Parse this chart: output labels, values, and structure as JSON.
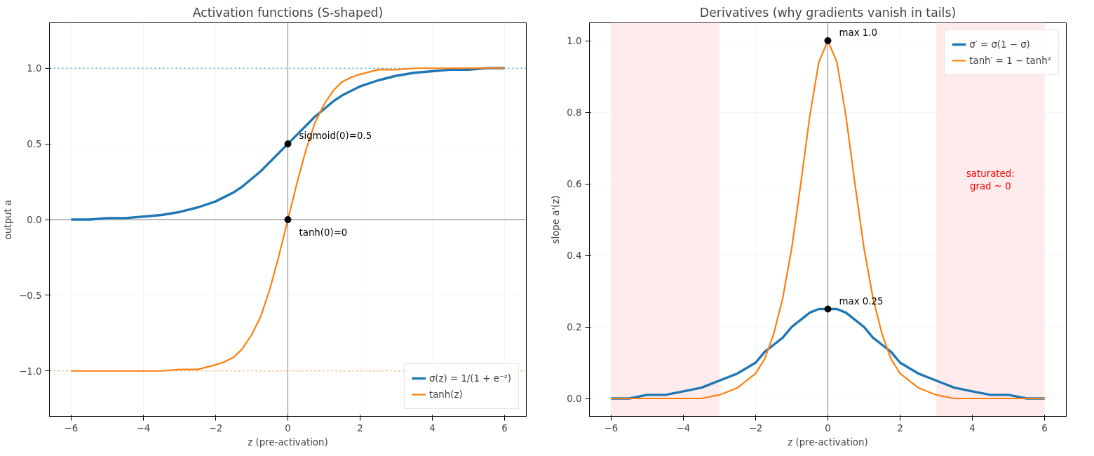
{
  "chart_data": [
    {
      "type": "line",
      "title": "Activation functions (S-shaped)",
      "xlabel": "z (pre-activation)",
      "ylabel": "output a",
      "x": [
        -6,
        -5.5,
        -5,
        -4.5,
        -4,
        -3.5,
        -3,
        -2.5,
        -2,
        -1.75,
        -1.5,
        -1.25,
        -1,
        -0.75,
        -0.5,
        -0.25,
        0,
        0.25,
        0.5,
        0.75,
        1,
        1.25,
        1.5,
        1.75,
        2,
        2.5,
        3,
        3.5,
        4,
        4.5,
        5,
        5.5,
        6
      ],
      "series": [
        {
          "name": "σ(z) = 1/(1 + e⁻ᶻ)",
          "color": "#1f77b4",
          "values": [
            0.0,
            0.0,
            0.01,
            0.01,
            0.02,
            0.03,
            0.05,
            0.08,
            0.12,
            0.15,
            0.18,
            0.22,
            0.27,
            0.32,
            0.38,
            0.44,
            0.5,
            0.56,
            0.62,
            0.68,
            0.73,
            0.78,
            0.82,
            0.85,
            0.88,
            0.92,
            0.95,
            0.97,
            0.98,
            0.99,
            0.99,
            1.0,
            1.0
          ]
        },
        {
          "name": "tanh(z)",
          "color": "#ff7f0e",
          "values": [
            -1.0,
            -1.0,
            -1.0,
            -1.0,
            -1.0,
            -1.0,
            -0.99,
            -0.99,
            -0.96,
            -0.94,
            -0.91,
            -0.85,
            -0.76,
            -0.64,
            -0.46,
            -0.24,
            0,
            0.24,
            0.46,
            0.64,
            0.76,
            0.85,
            0.91,
            0.94,
            0.96,
            0.99,
            0.99,
            1.0,
            1.0,
            1.0,
            1.0,
            1.0,
            1.0
          ]
        },
        {
          "type": "scatter",
          "color": "#000000",
          "marker": "circle",
          "values": [
            null,
            null,
            null,
            null,
            null,
            null,
            null,
            null,
            null,
            null,
            null,
            null,
            null,
            null,
            null,
            null,
            0.5,
            null,
            null,
            null,
            null,
            null,
            null,
            null,
            null,
            null,
            null,
            null,
            null,
            null,
            null,
            null,
            null
          ],
          "value_labels": [
            null,
            null,
            null,
            null,
            null,
            null,
            null,
            null,
            null,
            null,
            null,
            null,
            null,
            null,
            null,
            null,
            "sigmoid(0)=0.5",
            null,
            null,
            null,
            null,
            null,
            null,
            null,
            null,
            null,
            null,
            null,
            null,
            null,
            null,
            null,
            null
          ]
        },
        {
          "type": "scatter",
          "color": "#000000",
          "marker": "circle",
          "values": [
            null,
            null,
            null,
            null,
            null,
            null,
            null,
            null,
            null,
            null,
            null,
            null,
            null,
            null,
            null,
            null,
            0,
            null,
            null,
            null,
            null,
            null,
            null,
            null,
            null,
            null,
            null,
            null,
            null,
            null,
            null,
            null,
            null
          ],
          "value_labels": [
            null,
            null,
            null,
            null,
            null,
            null,
            null,
            null,
            null,
            null,
            null,
            null,
            null,
            null,
            null,
            null,
            "tanh(0)=0",
            null,
            null,
            null,
            null,
            null,
            null,
            null,
            null,
            null,
            null,
            null,
            null,
            null,
            null,
            null,
            null
          ]
        }
      ],
      "ref_lines": [
        {
          "axis": "y",
          "value": 1,
          "color": "#1f77b4",
          "line_style": "dotted"
        },
        {
          "axis": "y",
          "value": -1,
          "color": "#ff7f0e",
          "line_style": "dotted"
        },
        {
          "axis": "x",
          "value": 0,
          "color": "#808080",
          "line_style": "solid"
        },
        {
          "axis": "y",
          "value": 0,
          "color": "#7a7a7a",
          "line_style": "solid"
        }
      ],
      "xlim": [
        -6.6,
        6.6
      ],
      "ylim": [
        -1.3,
        1.3
      ],
      "xticks": [
        {
          "value": -6,
          "label": "−6"
        },
        {
          "value": -4,
          "label": "−4"
        },
        {
          "value": -2,
          "label": "−2"
        },
        0,
        2,
        4,
        6
      ],
      "yticks": [
        {
          "value": -1,
          "label": "−1.0"
        },
        {
          "value": -0.5,
          "label": "−0.5"
        },
        {
          "value": 0,
          "label": "0.0"
        },
        {
          "value": 0.5,
          "label": "0.5"
        },
        {
          "value": 1,
          "label": "1.0"
        }
      ],
      "grid": true,
      "legend": "bottom right",
      "marker": "none",
      "line_style": "solid"
    },
    {
      "type": "line",
      "title": "Derivatives (why gradients vanish in tails)",
      "xlabel": "z (pre-activation)",
      "ylabel": "slope a'(z)",
      "x": [
        -6,
        -5.5,
        -5,
        -4.5,
        -4,
        -3.5,
        -3,
        -2.5,
        -2,
        -1.75,
        -1.5,
        -1.25,
        -1,
        -0.75,
        -0.5,
        -0.25,
        0,
        0.25,
        0.5,
        0.75,
        1,
        1.25,
        1.5,
        1.75,
        2,
        2.5,
        3,
        3.5,
        4,
        4.5,
        5,
        5.5,
        6
      ],
      "series": [
        {
          "name": "σ′ = σ(1 − σ)",
          "color": "#1f77b4",
          "values": [
            0.0,
            0.0,
            0.01,
            0.01,
            0.02,
            0.03,
            0.05,
            0.07,
            0.1,
            0.13,
            0.15,
            0.17,
            0.2,
            0.22,
            0.24,
            0.25,
            0.25,
            0.25,
            0.24,
            0.22,
            0.2,
            0.17,
            0.15,
            0.13,
            0.1,
            0.07,
            0.05,
            0.03,
            0.02,
            0.01,
            0.01,
            0.0,
            0.0
          ]
        },
        {
          "name": "tanh′ = 1 − tanh²",
          "color": "#ff7f0e",
          "values": [
            0.0,
            0.0,
            0.0,
            0.0,
            0.0,
            0.0,
            0.01,
            0.03,
            0.07,
            0.11,
            0.18,
            0.28,
            0.42,
            0.6,
            0.79,
            0.94,
            1.0,
            0.94,
            0.79,
            0.6,
            0.42,
            0.28,
            0.18,
            0.11,
            0.07,
            0.03,
            0.01,
            0.0,
            0.0,
            0.0,
            0.0,
            0.0,
            0.0
          ]
        },
        {
          "type": "scatter",
          "color": "#000000",
          "marker": "circle",
          "values": [
            null,
            null,
            null,
            null,
            null,
            null,
            null,
            null,
            null,
            null,
            null,
            null,
            null,
            null,
            null,
            null,
            1.0,
            null,
            null,
            null,
            null,
            null,
            null,
            null,
            null,
            null,
            null,
            null,
            null,
            null,
            null,
            null,
            null
          ],
          "value_labels": [
            null,
            null,
            null,
            null,
            null,
            null,
            null,
            null,
            null,
            null,
            null,
            null,
            null,
            null,
            null,
            null,
            "max 1.0",
            null,
            null,
            null,
            null,
            null,
            null,
            null,
            null,
            null,
            null,
            null,
            null,
            null,
            null,
            null,
            null
          ]
        },
        {
          "type": "scatter",
          "color": "#000000",
          "marker": "circle",
          "values": [
            null,
            null,
            null,
            null,
            null,
            null,
            null,
            null,
            null,
            null,
            null,
            null,
            null,
            null,
            null,
            null,
            0.25,
            null,
            null,
            null,
            null,
            null,
            null,
            null,
            null,
            null,
            null,
            null,
            null,
            null,
            null,
            null,
            null
          ],
          "value_labels": [
            null,
            null,
            null,
            null,
            null,
            null,
            null,
            null,
            null,
            null,
            null,
            null,
            null,
            null,
            null,
            null,
            "max 0.25",
            null,
            null,
            null,
            null,
            null,
            null,
            null,
            null,
            null,
            null,
            null,
            null,
            null,
            null,
            null,
            null
          ]
        }
      ],
      "ref_lines": [
        {
          "axis": "x",
          "value": 0,
          "color": "#808080",
          "line_style": "solid"
        }
      ],
      "bands": [
        {
          "axis": "x",
          "from": -6,
          "to": -3,
          "color": "#ffe6e6"
        },
        {
          "axis": "x",
          "from": 3,
          "to": 6,
          "color": "#ffe6e6",
          "label": "saturated:\ngrad ~ 0"
        }
      ],
      "xlim": [
        -6.6,
        6.6
      ],
      "ylim": [
        -0.05,
        1.05
      ],
      "xticks": [
        {
          "value": -6,
          "label": "−6"
        },
        {
          "value": -4,
          "label": "−4"
        },
        {
          "value": -2,
          "label": "−2"
        },
        0,
        2,
        4,
        6
      ],
      "yticks": [
        {
          "value": 0,
          "label": "0.0"
        },
        {
          "value": 0.2,
          "label": "0.2"
        },
        {
          "value": 0.4,
          "label": "0.4"
        },
        {
          "value": 0.6,
          "label": "0.6"
        },
        {
          "value": 0.8,
          "label": "0.8"
        },
        {
          "value": 1,
          "label": "1.0"
        }
      ],
      "grid": true,
      "legend": "top right",
      "marker": "none",
      "line_style": "solid"
    }
  ]
}
